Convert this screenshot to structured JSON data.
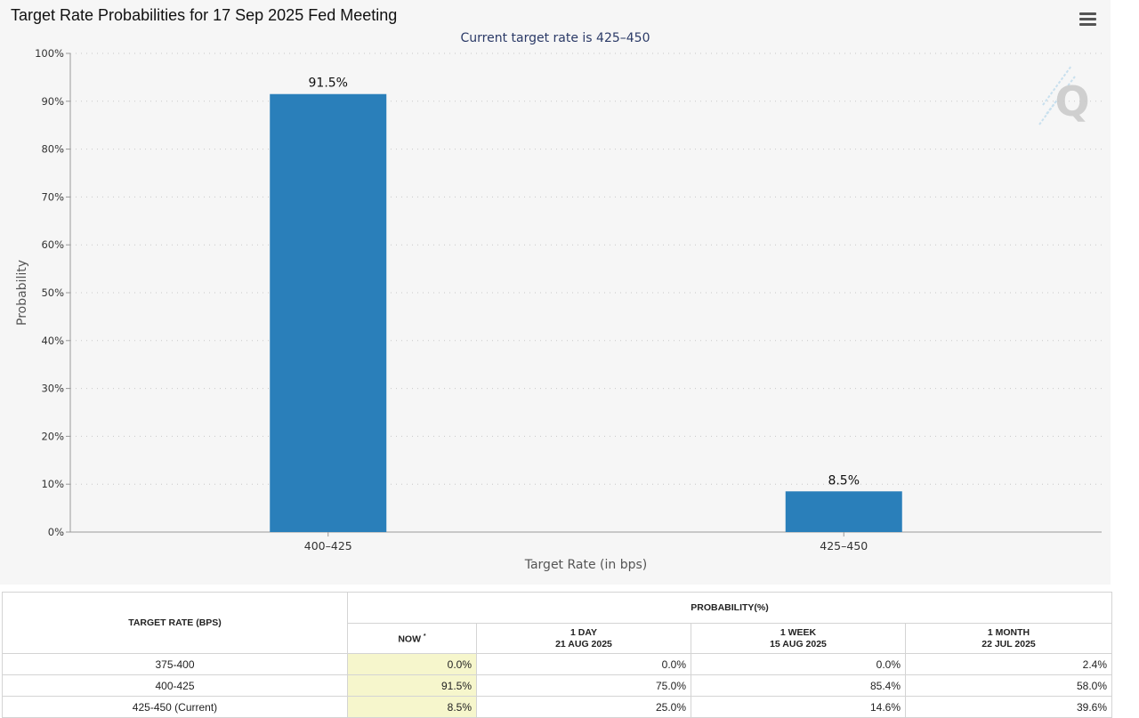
{
  "header": {
    "title": "Target Rate Probabilities for 17 Sep 2025 Fed Meeting",
    "subtitle": "Current target rate is 425–450",
    "menu_icon": "hamburger-menu-icon",
    "watermark_text": "Q"
  },
  "colors": {
    "bar": "#2a7fba",
    "panel_bg": "#f6f6f6",
    "subtitle": "#2b3a67",
    "now_column_bg": "#f6f6cc"
  },
  "chart_data": {
    "type": "bar",
    "categories": [
      "400–425",
      "425–450"
    ],
    "values": [
      91.5,
      8.5
    ],
    "data_labels": [
      "91.5%",
      "8.5%"
    ],
    "title": "Target Rate Probabilities for 17 Sep 2025 Fed Meeting",
    "subtitle": "Current target rate is 425–450",
    "xlabel": "Target Rate (in bps)",
    "ylabel": "Probability",
    "ylim": [
      0,
      100
    ],
    "yticks": [
      "0%",
      "10%",
      "20%",
      "30%",
      "40%",
      "50%",
      "60%",
      "70%",
      "80%",
      "90%",
      "100%"
    ],
    "grid": "horizontal-dotted",
    "legend": "none"
  },
  "table": {
    "header_rate": "TARGET RATE (BPS)",
    "header_prob": "PROBABILITY(%)",
    "columns": [
      {
        "line1": "NOW",
        "line2": "",
        "mark": "*"
      },
      {
        "line1": "1 DAY",
        "line2": "21 AUG 2025"
      },
      {
        "line1": "1 WEEK",
        "line2": "15 AUG 2025"
      },
      {
        "line1": "1 MONTH",
        "line2": "22 JUL 2025"
      }
    ],
    "rows": [
      {
        "rate": "375-400",
        "now": "0.0%",
        "day": "0.0%",
        "week": "0.0%",
        "month": "2.4%"
      },
      {
        "rate": "400-425",
        "now": "91.5%",
        "day": "75.0%",
        "week": "85.4%",
        "month": "58.0%"
      },
      {
        "rate": "425-450 (Current)",
        "now": "8.5%",
        "day": "25.0%",
        "week": "14.6%",
        "month": "39.6%"
      }
    ]
  }
}
